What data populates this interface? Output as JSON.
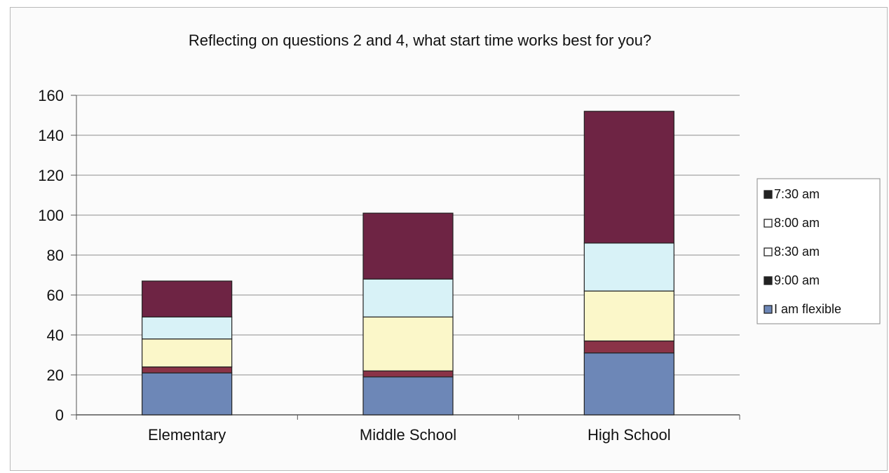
{
  "chart_data": {
    "type": "bar",
    "stacked": true,
    "title": "Reflecting on questions 2 and 4, what start time works best for you?",
    "xlabel": "",
    "ylabel": "",
    "categories": [
      "Elementary",
      "Middle School",
      "High School"
    ],
    "ylim": [
      0,
      160
    ],
    "yticks": [
      0,
      20,
      40,
      60,
      80,
      100,
      120,
      140,
      160
    ],
    "grid": true,
    "legend_position": "right",
    "series": [
      {
        "name": "I am flexible",
        "values": [
          21,
          19,
          31
        ],
        "color": "#6d87b7"
      },
      {
        "name": "9:00 am",
        "values": [
          3,
          3,
          6
        ],
        "color": "#8a3347"
      },
      {
        "name": "8:30 am",
        "values": [
          14,
          27,
          25
        ],
        "color": "#fbf7c9"
      },
      {
        "name": "8:00 am",
        "values": [
          11,
          19,
          24
        ],
        "color": "#d8f2f7"
      },
      {
        "name": "7:30 am",
        "values": [
          18,
          33,
          66
        ],
        "color": "#6e2444"
      }
    ]
  }
}
